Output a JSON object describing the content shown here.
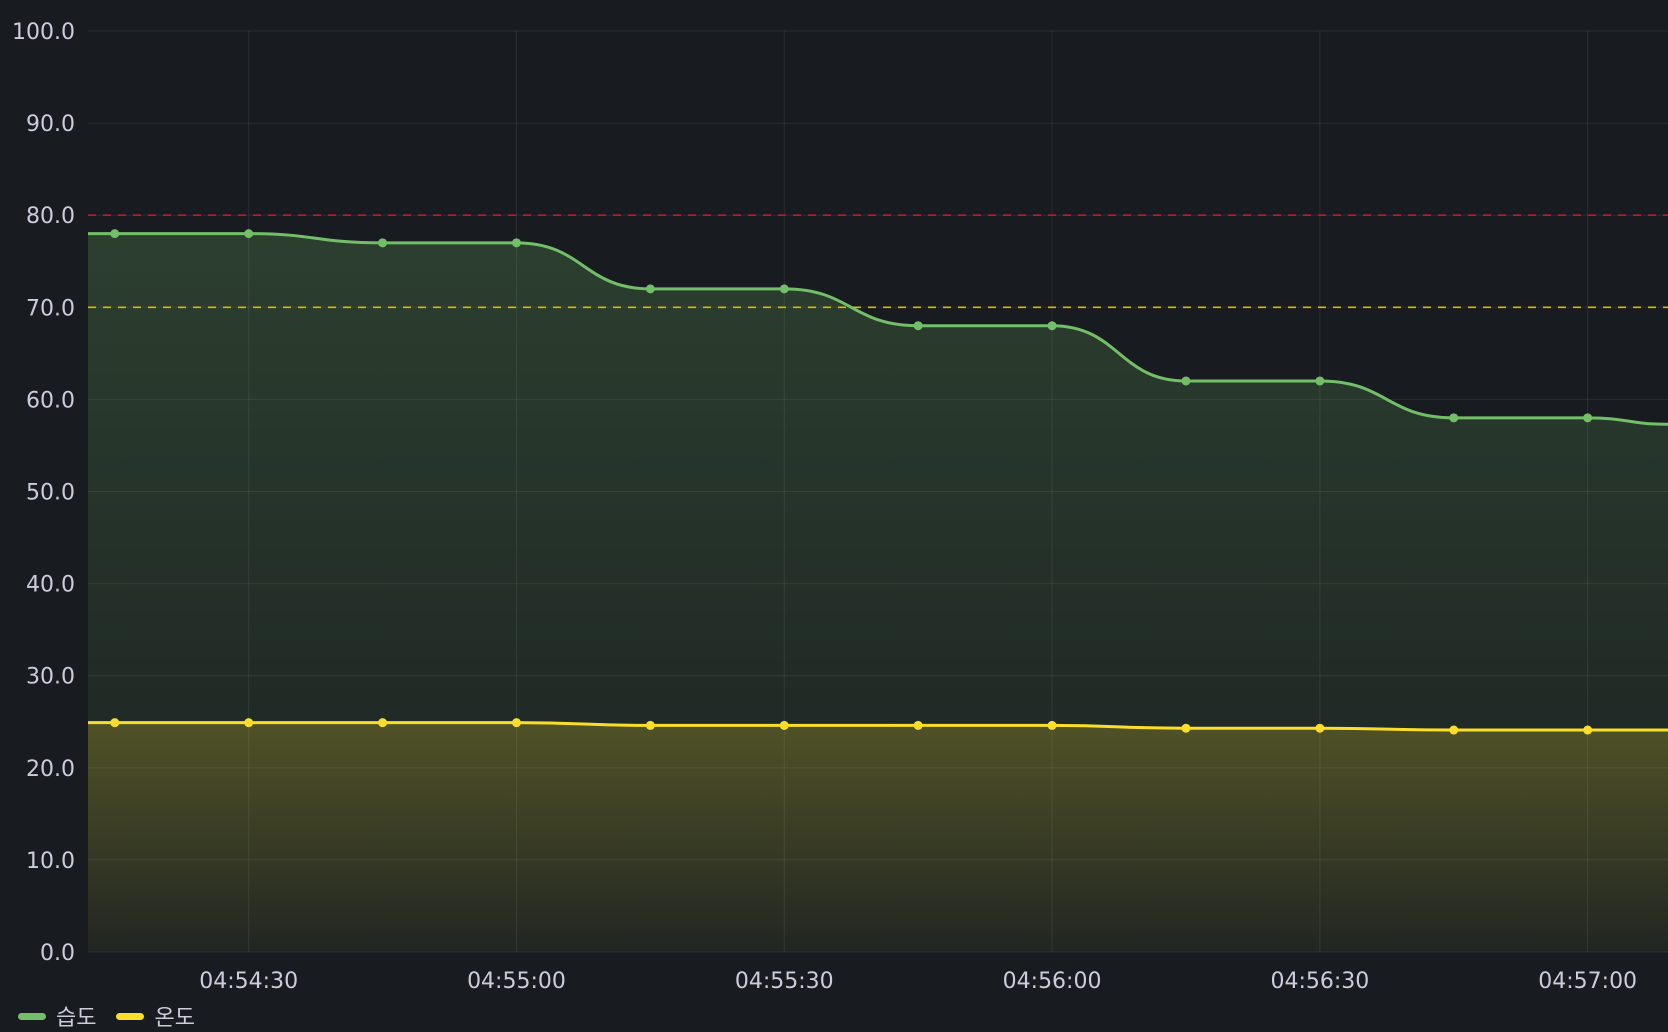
{
  "chart_data": {
    "type": "area",
    "title": "",
    "xlabel": "",
    "ylabel": "",
    "x": [
      "04:54:15",
      "04:54:30",
      "04:54:45",
      "04:55:00",
      "04:55:15",
      "04:55:30",
      "04:55:45",
      "04:56:00",
      "04:56:15",
      "04:56:30",
      "04:56:45",
      "04:57:00"
    ],
    "x_ticks": [
      "04:54:30",
      "04:55:00",
      "04:55:30",
      "04:56:00",
      "04:56:30",
      "04:57:00"
    ],
    "x_range": [
      "04:54:12",
      "04:57:09"
    ],
    "y_ticks": [
      "0.0",
      "10.0",
      "20.0",
      "30.0",
      "40.0",
      "50.0",
      "60.0",
      "70.0",
      "80.0",
      "90.0",
      "100.0"
    ],
    "ylim": [
      0,
      100
    ],
    "grid": true,
    "legend_position": "bottom-left",
    "series": [
      {
        "name": "습도",
        "color": "#73bf69",
        "values": [
          78,
          78,
          77,
          77,
          72,
          72,
          68,
          68,
          62,
          62,
          58,
          58
        ],
        "edge_values": {
          "start": 78,
          "end": 57.3
        }
      },
      {
        "name": "온도",
        "color": "#fade2a",
        "values": [
          24.9,
          24.9,
          24.9,
          24.9,
          24.6,
          24.6,
          24.6,
          24.6,
          24.3,
          24.3,
          24.1,
          24.1
        ],
        "edge_values": {
          "start": 24.9,
          "end": 24.1
        }
      }
    ],
    "thresholds": [
      {
        "value": 80,
        "color": "#c4162a",
        "style": "dashed"
      },
      {
        "value": 70,
        "color": "#e0b400",
        "style": "dashed"
      }
    ]
  }
}
